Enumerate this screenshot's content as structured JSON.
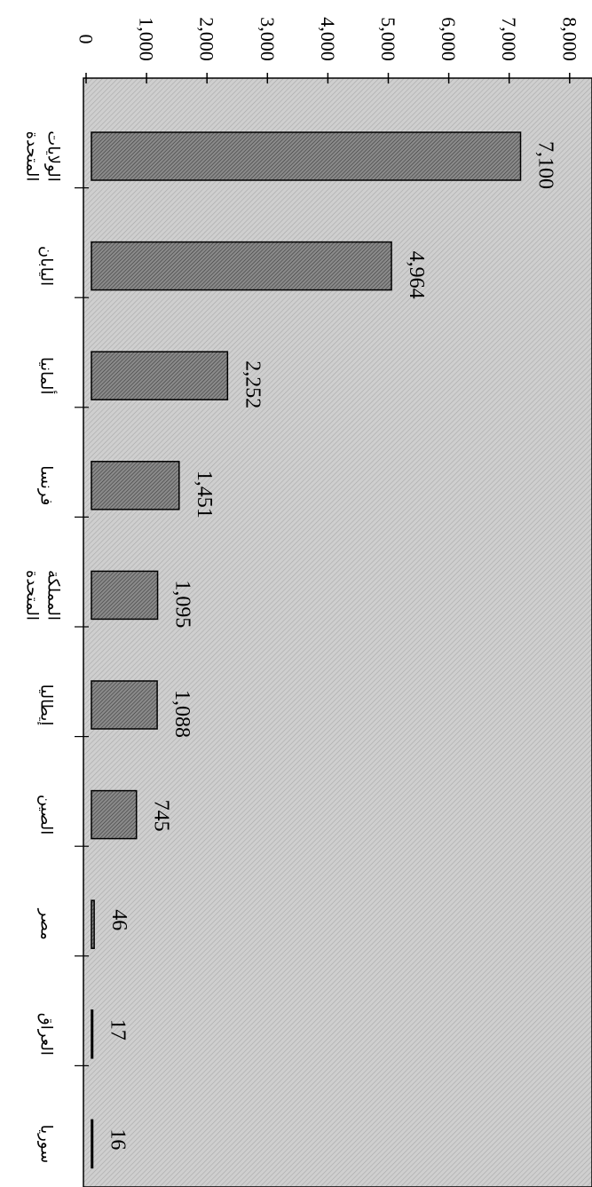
{
  "chart_data": {
    "type": "bar",
    "orientation": "rotated-90-clockwise",
    "categories": [
      [
        "الولايات",
        "المتحدة"
      ],
      [
        "اليابان"
      ],
      [
        "ألمانيا"
      ],
      [
        "فرنسا"
      ],
      [
        "المملكة",
        "المتحدة"
      ],
      [
        "إيطاليا"
      ],
      [
        "الصين"
      ],
      [
        "مصر"
      ],
      [
        "العراق"
      ],
      [
        "سوريا"
      ]
    ],
    "values": [
      7100,
      4964,
      2252,
      1451,
      1095,
      1088,
      745,
      46,
      17,
      16
    ],
    "value_labels": [
      "7,100",
      "4,964",
      "2,252",
      "1,451",
      "1,095",
      "1,088",
      "745",
      "46",
      "17",
      "16"
    ],
    "y_ticks": [
      0,
      1000,
      2000,
      3000,
      4000,
      5000,
      6000,
      7000,
      8000
    ],
    "y_tick_labels": [
      "0",
      "1,000",
      "2,000",
      "3,000",
      "4,000",
      "5,000",
      "6,000",
      "7,000",
      "8,000"
    ],
    "ylim": [
      0,
      8000
    ],
    "title": "",
    "xlabel": "",
    "ylabel": "",
    "grid": false,
    "legend": "none",
    "colors": {
      "plot_background": "#c8c8c8",
      "bar_fill": "#6e6e6e",
      "bar_stroke": "#000000",
      "text": "#000000"
    }
  }
}
